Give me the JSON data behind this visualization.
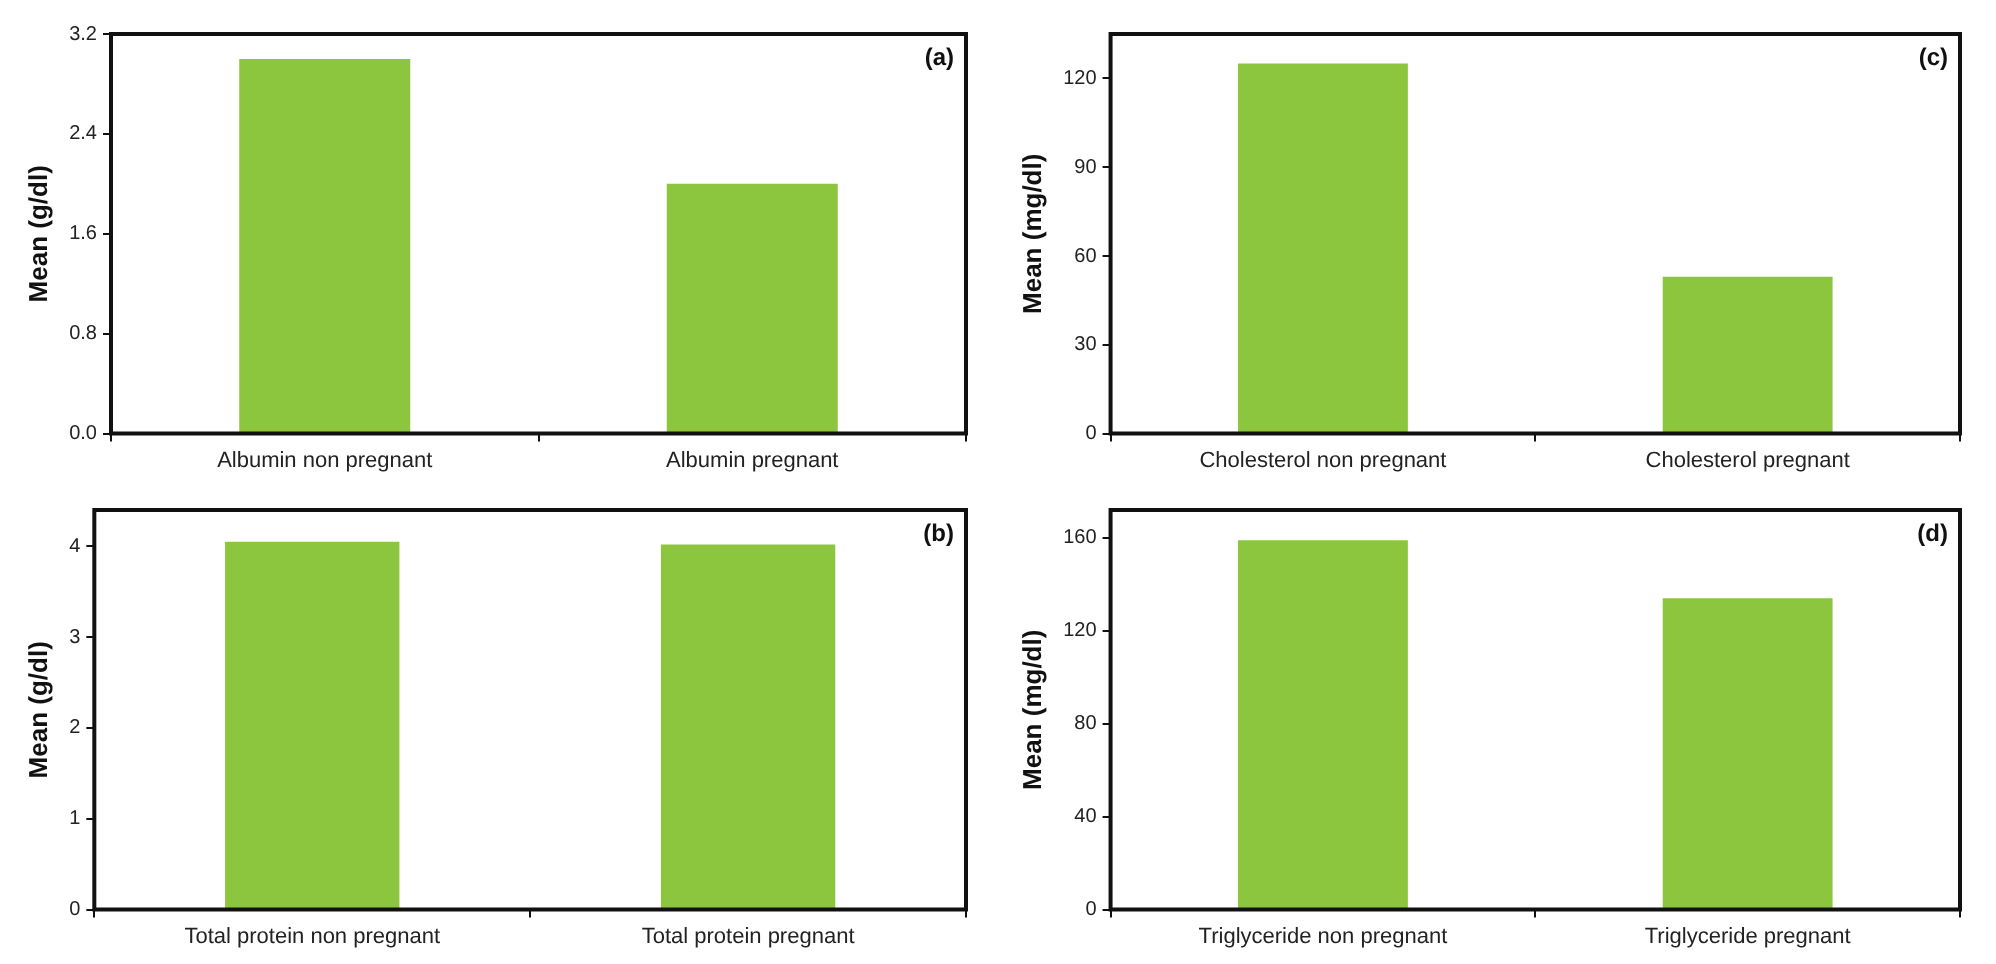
{
  "chart_data": [
    {
      "type": "bar",
      "categories": [
        "Albumin non pregnant",
        "Albumin pregnant"
      ],
      "values": [
        3.0,
        2.0
      ],
      "color": "#8cc63f",
      "ylabel": "Mean (g/dl)",
      "ylim": [
        0,
        3.2
      ],
      "yticks": [
        {
          "value": 0,
          "label": "0.0"
        },
        0.8,
        1.6,
        2.4,
        3.2
      ],
      "annotations": [
        "(a)"
      ]
    },
    {
      "type": "bar",
      "categories": [
        "Cholesterol non pregnant",
        "Cholesterol pregnant"
      ],
      "values": [
        125,
        53
      ],
      "color": "#8cc63f",
      "ylabel": "Mean (mg/dl)",
      "ylim": [
        0,
        135
      ],
      "yticks": [
        0,
        30,
        60,
        90,
        120
      ],
      "annotations": [
        "(c)"
      ]
    },
    {
      "type": "bar",
      "categories": [
        "Total protein non pregnant",
        "Total protein pregnant"
      ],
      "values": [
        4.05,
        4.02
      ],
      "color": "#8cc63f",
      "ylabel": "Mean (g/dl)",
      "ylim": [
        0,
        4.4
      ],
      "yticks": [
        0,
        1,
        2,
        3,
        4
      ],
      "annotations": [
        "(b)"
      ]
    },
    {
      "type": "bar",
      "categories": [
        "Triglyceride non pregnant",
        "Triglyceride pregnant"
      ],
      "values": [
        159,
        134
      ],
      "color": "#8cc63f",
      "ylabel": "Mean (mg/dl)",
      "ylim": [
        0,
        172
      ],
      "yticks": [
        0,
        40,
        80,
        120,
        160
      ],
      "annotations": [
        "(d)"
      ]
    }
  ]
}
